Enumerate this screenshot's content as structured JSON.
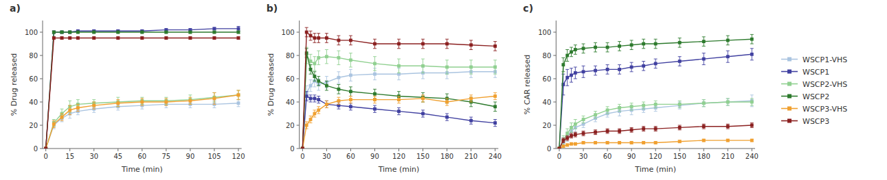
{
  "chart_data": [
    {
      "type": "line",
      "title": "a)",
      "xlabel": "Time (min)",
      "ylabel": "% Drug released",
      "x": [
        0,
        5,
        10,
        15,
        20,
        30,
        45,
        60,
        75,
        90,
        105,
        120
      ],
      "series": [
        {
          "name": "WSCP1-VHS",
          "color": "#aac4e0",
          "values": [
            0,
            20,
            26,
            30,
            32,
            34,
            36,
            37,
            38,
            38,
            38,
            39
          ],
          "errors": [
            0,
            3,
            3,
            4,
            3,
            3,
            3,
            3,
            3,
            3,
            3,
            3
          ]
        },
        {
          "name": "WSCP1",
          "color": "#4040a0",
          "values": [
            0,
            100,
            100,
            100,
            101,
            101,
            101,
            101,
            102,
            102,
            103,
            103
          ],
          "errors": [
            0,
            1,
            1,
            1,
            1,
            1,
            1,
            1,
            1,
            1,
            1,
            2
          ]
        },
        {
          "name": "WSCP2-VHS",
          "color": "#90d090",
          "values": [
            0,
            22,
            30,
            36,
            38,
            39,
            40,
            41,
            41,
            42,
            44,
            46
          ],
          "errors": [
            0,
            3,
            4,
            5,
            4,
            3,
            4,
            3,
            3,
            4,
            4,
            4
          ]
        },
        {
          "name": "WSCP2",
          "color": "#2d7a2d",
          "values": [
            0,
            100,
            100,
            100,
            100,
            100,
            100,
            100,
            100,
            100,
            100,
            100
          ],
          "errors": [
            0,
            1,
            1,
            1,
            1,
            1,
            1,
            1,
            1,
            1,
            1,
            1
          ]
        },
        {
          "name": "WSCP3-VHS",
          "color": "#f0a030",
          "values": [
            0,
            21,
            27,
            33,
            35,
            37,
            39,
            40,
            40,
            41,
            43,
            46
          ],
          "errors": [
            0,
            3,
            3,
            4,
            3,
            3,
            3,
            3,
            3,
            3,
            5,
            4
          ]
        },
        {
          "name": "WSCP3",
          "color": "#8b2020",
          "values": [
            0,
            95,
            95,
            95,
            95,
            95,
            95,
            95,
            95,
            95,
            95,
            95
          ],
          "errors": [
            0,
            1,
            1,
            1,
            1,
            1,
            1,
            1,
            1,
            1,
            1,
            1
          ]
        }
      ],
      "xlim": [
        -2,
        122
      ],
      "ylim": [
        0,
        110
      ],
      "xticks": [
        0,
        15,
        30,
        45,
        60,
        75,
        90,
        105,
        120
      ],
      "yticks": [
        0,
        20,
        40,
        60,
        80,
        100
      ],
      "grid": false,
      "legend": "right",
      "marker": "square",
      "line_style": "solid"
    },
    {
      "type": "line",
      "title": "b)",
      "xlabel": "Time (min)",
      "ylabel": "% Drug released",
      "x": [
        0,
        5,
        10,
        15,
        20,
        30,
        45,
        60,
        90,
        120,
        150,
        180,
        210,
        240
      ],
      "series": [
        {
          "name": "WSCP1-VHS",
          "color": "#aac4e0",
          "values": [
            0,
            48,
            54,
            58,
            55,
            57,
            61,
            63,
            64,
            64,
            65,
            65,
            66,
            66
          ],
          "errors": [
            0,
            6,
            5,
            5,
            5,
            5,
            5,
            5,
            5,
            5,
            5,
            5,
            5,
            5
          ]
        },
        {
          "name": "WSCP1",
          "color": "#4040a0",
          "values": [
            0,
            45,
            43,
            43,
            42,
            38,
            37,
            36,
            34,
            32,
            30,
            27,
            24,
            22
          ],
          "errors": [
            0,
            4,
            3,
            3,
            3,
            3,
            3,
            3,
            3,
            3,
            3,
            3,
            3,
            3
          ]
        },
        {
          "name": "WSCP2-VHS",
          "color": "#90d090",
          "values": [
            0,
            80,
            75,
            73,
            78,
            79,
            78,
            76,
            73,
            71,
            71,
            70,
            70,
            70
          ],
          "errors": [
            0,
            7,
            6,
            6,
            6,
            6,
            6,
            6,
            6,
            6,
            6,
            6,
            6,
            6
          ]
        },
        {
          "name": "WSCP2",
          "color": "#2d7a2d",
          "values": [
            0,
            82,
            68,
            62,
            58,
            54,
            51,
            49,
            47,
            45,
            44,
            43,
            40,
            36
          ],
          "errors": [
            0,
            4,
            4,
            4,
            4,
            4,
            4,
            4,
            4,
            4,
            4,
            4,
            4,
            4
          ]
        },
        {
          "name": "WSCP3-VHS",
          "color": "#f0a030",
          "values": [
            0,
            20,
            25,
            30,
            33,
            38,
            41,
            42,
            42,
            42,
            43,
            40,
            43,
            45
          ],
          "errors": [
            0,
            3,
            3,
            3,
            3,
            3,
            3,
            3,
            3,
            3,
            3,
            3,
            3,
            3
          ]
        },
        {
          "name": "WSCP3",
          "color": "#8b2020",
          "values": [
            0,
            100,
            97,
            95,
            95,
            95,
            93,
            93,
            90,
            90,
            90,
            90,
            89,
            88
          ],
          "errors": [
            0,
            4,
            4,
            4,
            4,
            4,
            4,
            4,
            4,
            4,
            4,
            4,
            4,
            4
          ]
        }
      ],
      "xlim": [
        -4,
        244
      ],
      "ylim": [
        0,
        110
      ],
      "xticks": [
        0,
        30,
        60,
        90,
        120,
        150,
        180,
        210,
        240
      ],
      "yticks": [
        0,
        20,
        40,
        60,
        80,
        100
      ],
      "grid": false,
      "marker": "square",
      "line_style": "solid"
    },
    {
      "type": "line",
      "title": "c)",
      "xlabel": "Time (min)",
      "ylabel": "% CAR released",
      "x": [
        0,
        5,
        10,
        15,
        20,
        30,
        45,
        60,
        75,
        90,
        105,
        120,
        150,
        180,
        210,
        240
      ],
      "series": [
        {
          "name": "WSCP1-VHS",
          "color": "#aac4e0",
          "values": [
            0,
            5,
            10,
            15,
            18,
            21,
            26,
            30,
            32,
            33,
            34,
            35,
            37,
            39,
            40,
            41
          ],
          "errors": [
            0,
            4,
            4,
            4,
            4,
            3,
            3,
            3,
            4,
            4,
            3,
            3,
            3,
            3,
            3,
            5
          ]
        },
        {
          "name": "WSCP1",
          "color": "#4040a0",
          "values": [
            0,
            55,
            61,
            63,
            65,
            66,
            67,
            68,
            68,
            70,
            71,
            73,
            75,
            77,
            79,
            81
          ],
          "errors": [
            0,
            9,
            7,
            6,
            5,
            5,
            4,
            4,
            4,
            4,
            4,
            4,
            4,
            5,
            5,
            5
          ]
        },
        {
          "name": "WSCP2-VHS",
          "color": "#90d090",
          "values": [
            0,
            7,
            13,
            18,
            21,
            25,
            29,
            33,
            35,
            36,
            37,
            38,
            38,
            39,
            40,
            40
          ],
          "errors": [
            0,
            4,
            4,
            4,
            4,
            3,
            3,
            3,
            3,
            3,
            3,
            3,
            3,
            3,
            3,
            3
          ]
        },
        {
          "name": "WSCP2",
          "color": "#2d7a2d",
          "values": [
            0,
            72,
            80,
            83,
            85,
            86,
            87,
            87,
            88,
            89,
            90,
            90,
            91,
            92,
            93,
            94
          ],
          "errors": [
            0,
            6,
            5,
            4,
            4,
            4,
            4,
            4,
            4,
            4,
            4,
            4,
            4,
            4,
            4,
            4
          ]
        },
        {
          "name": "WSCP3-VHS",
          "color": "#f0a030",
          "values": [
            0,
            2,
            3,
            4,
            4,
            5,
            5,
            5,
            5,
            5,
            5,
            5,
            6,
            7,
            7,
            7
          ],
          "errors": [
            0,
            1,
            1,
            1,
            1,
            1,
            1,
            1,
            1,
            1,
            1,
            1,
            1,
            1,
            1,
            1
          ]
        },
        {
          "name": "WSCP3",
          "color": "#8b2020",
          "values": [
            0,
            7,
            9,
            11,
            12,
            13,
            14,
            15,
            15,
            16,
            17,
            17,
            18,
            19,
            19,
            20
          ],
          "errors": [
            0,
            2,
            2,
            2,
            2,
            2,
            2,
            2,
            2,
            2,
            2,
            2,
            2,
            2,
            2,
            2
          ]
        }
      ],
      "xlim": [
        -4,
        244
      ],
      "ylim": [
        0,
        110
      ],
      "xticks": [
        0,
        30,
        60,
        90,
        120,
        150,
        180,
        210,
        240
      ],
      "yticks": [
        0,
        20,
        40,
        60,
        80,
        100
      ],
      "grid": false,
      "marker": "square",
      "line_style": "solid"
    }
  ]
}
